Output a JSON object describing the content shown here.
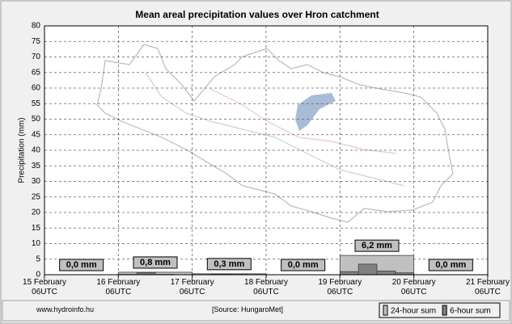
{
  "chart_data": {
    "type": "bar",
    "title": "Mean areal precipitation values over Hron catchment",
    "ylabel": "Precipitation (mm)",
    "xlim": [
      0,
      6
    ],
    "xticks": [
      {
        "value": 0,
        "label": "15 February 06UTC"
      },
      {
        "value": 1,
        "label": "16 February 06UTC"
      },
      {
        "value": 2,
        "label": "17 February 06UTC"
      },
      {
        "value": 3,
        "label": "18 February 06UTC"
      },
      {
        "value": 4,
        "label": "19 February 06UTC"
      },
      {
        "value": 5,
        "label": "20 February 06UTC"
      },
      {
        "value": 6,
        "label": "21 February 06UTC"
      }
    ],
    "ylim": [
      0,
      80
    ],
    "yticks": [
      0,
      5,
      10,
      15,
      20,
      25,
      30,
      35,
      40,
      45,
      50,
      55,
      60,
      65,
      70,
      75,
      80
    ],
    "grid": true,
    "series": [
      {
        "name": "24-hour sum",
        "color": "#c0c0c0",
        "x": [
          0,
          1,
          2,
          3,
          4,
          5
        ],
        "values": [
          0,
          0.8,
          0.3,
          0,
          6.2,
          0
        ],
        "value_labels": [
          "0,0 mm",
          "0,8 mm",
          "0,3 mm",
          "0,0 mm",
          "6,2 mm",
          "0,0 mm"
        ]
      },
      {
        "name": "6-hour sum",
        "color": "#808080",
        "x": [
          0,
          0.25,
          0.5,
          0.75,
          1,
          1.25,
          1.5,
          1.75,
          2,
          2.25,
          2.5,
          2.75,
          3,
          3.25,
          3.5,
          3.75,
          4,
          4.25,
          4.5,
          4.75,
          5,
          5.25,
          5.5,
          5.75
        ],
        "values": [
          0,
          0,
          0,
          0,
          0.1,
          0.6,
          0.1,
          0,
          0,
          0.2,
          0.1,
          0,
          0,
          0,
          0,
          0,
          1.0,
          3.4,
          1.2,
          0.6,
          0,
          0,
          0,
          0
        ]
      }
    ],
    "footer_left": "www.hydroinfo.hu",
    "footer_center": "[Source: HungaroMet]"
  }
}
